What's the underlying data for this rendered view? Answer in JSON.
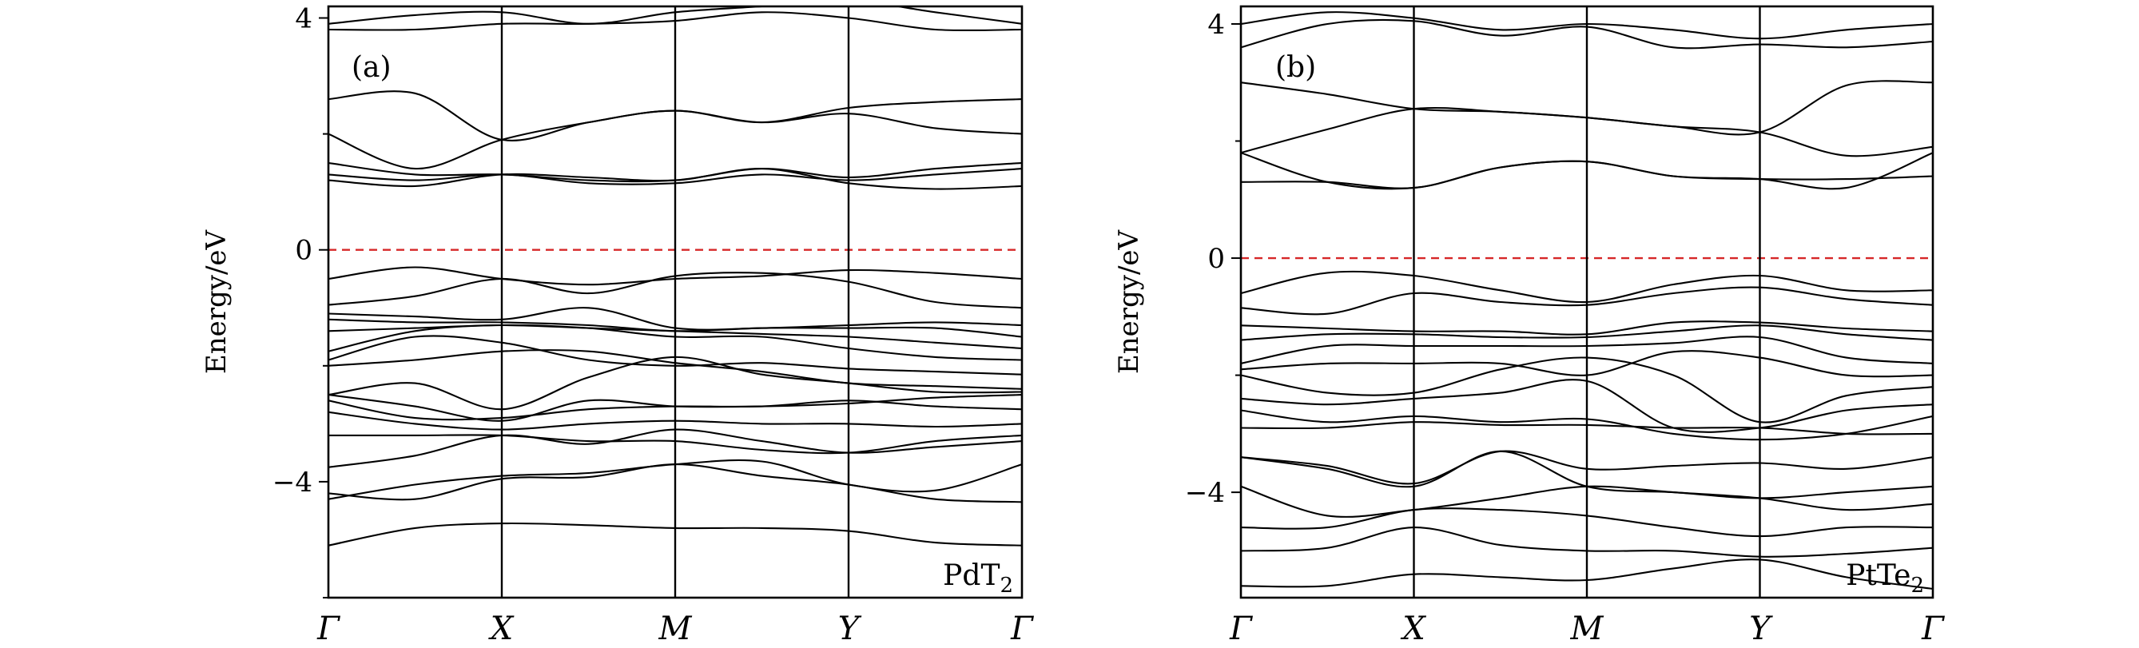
{
  "chart_data": [
    {
      "type": "line",
      "panel_label": "(a)",
      "material": {
        "base": "PdT",
        "sub": "2"
      },
      "ylabel": "Energy/eV",
      "ylim": [
        -6.0,
        4.2
      ],
      "yticks": [
        {
          "value": 4,
          "label": "4"
        },
        {
          "value": 0,
          "label": "0"
        },
        {
          "value": -4,
          "label": "−4"
        }
      ],
      "kpoints": [
        "Γ",
        "X",
        "M",
        "Y",
        "Γ"
      ],
      "fermi_level": 0,
      "bands": [
        [
          -5.1,
          -4.8,
          -4.72,
          -4.75,
          -4.8,
          -4.8,
          -4.85,
          -5.05,
          -5.1
        ],
        [
          -4.3,
          -4.05,
          -3.9,
          -3.85,
          -3.7,
          -3.65,
          -4.05,
          -4.15,
          -3.7
        ],
        [
          -4.2,
          -4.3,
          -3.95,
          -3.92,
          -3.7,
          -3.9,
          -4.05,
          -4.3,
          -4.35
        ],
        [
          -3.75,
          -3.55,
          -3.2,
          -3.35,
          -3.1,
          -3.3,
          -3.5,
          -3.4,
          -3.3
        ],
        [
          -3.2,
          -3.2,
          -3.2,
          -3.3,
          -3.3,
          -3.45,
          -3.5,
          -3.3,
          -3.2
        ],
        [
          -2.8,
          -3.0,
          -3.1,
          -3.0,
          -2.95,
          -3.0,
          -3.0,
          -3.05,
          -3.0
        ],
        [
          -2.6,
          -2.9,
          -2.9,
          -2.75,
          -2.7,
          -2.7,
          -2.6,
          -2.7,
          -2.75
        ],
        [
          -2.5,
          -2.7,
          -2.95,
          -2.6,
          -2.7,
          -2.7,
          -2.65,
          -2.55,
          -2.5
        ],
        [
          -2.5,
          -2.3,
          -2.75,
          -2.2,
          -1.85,
          -2.15,
          -2.3,
          -2.45,
          -2.45
        ],
        [
          -2.0,
          -1.9,
          -1.75,
          -1.75,
          -1.95,
          -2.1,
          -2.3,
          -2.35,
          -2.4
        ],
        [
          -1.9,
          -1.5,
          -1.6,
          -1.9,
          -2.0,
          -1.95,
          -2.05,
          -2.1,
          -2.15
        ],
        [
          -1.75,
          -1.4,
          -1.3,
          -1.35,
          -1.5,
          -1.5,
          -1.7,
          -1.85,
          -1.9
        ],
        [
          -1.4,
          -1.35,
          -1.3,
          -1.35,
          -1.4,
          -1.45,
          -1.5,
          -1.6,
          -1.7
        ],
        [
          -1.2,
          -1.25,
          -1.25,
          -1.3,
          -1.4,
          -1.35,
          -1.35,
          -1.35,
          -1.5
        ],
        [
          -1.1,
          -1.15,
          -1.2,
          -1.0,
          -1.35,
          -1.35,
          -1.3,
          -1.25,
          -1.3
        ],
        [
          -0.95,
          -0.8,
          -0.5,
          -0.75,
          -0.45,
          -0.4,
          -0.55,
          -0.9,
          -1.0
        ],
        [
          -0.5,
          -0.3,
          -0.5,
          -0.6,
          -0.5,
          -0.45,
          -0.35,
          -0.4,
          -0.5
        ],
        [
          1.2,
          1.1,
          1.3,
          1.25,
          1.2,
          1.4,
          1.15,
          1.05,
          1.1
        ],
        [
          1.3,
          1.2,
          1.3,
          1.15,
          1.15,
          1.3,
          1.2,
          1.3,
          1.4
        ],
        [
          1.5,
          1.3,
          1.3,
          1.2,
          1.2,
          1.4,
          1.25,
          1.4,
          1.5
        ],
        [
          2.0,
          1.4,
          1.9,
          2.2,
          2.4,
          2.2,
          2.35,
          2.1,
          2.0
        ],
        [
          2.6,
          2.7,
          1.9,
          2.2,
          2.4,
          2.2,
          2.45,
          2.55,
          2.6
        ],
        [
          3.8,
          3.8,
          3.9,
          3.9,
          3.95,
          4.1,
          4.0,
          3.8,
          3.8
        ],
        [
          3.9,
          4.05,
          4.1,
          3.9,
          4.1,
          4.2,
          4.3,
          4.1,
          3.9
        ]
      ]
    },
    {
      "type": "line",
      "panel_label": "(b)",
      "material": {
        "base": "PtTe",
        "sub": "2"
      },
      "ylabel": "Energy/eV",
      "ylim": [
        -5.8,
        4.3
      ],
      "yticks": [
        {
          "value": 4,
          "label": "4"
        },
        {
          "value": 0,
          "label": "0"
        },
        {
          "value": -4,
          "label": "−4"
        }
      ],
      "kpoints": [
        "Γ",
        "X",
        "M",
        "Y",
        "Γ"
      ],
      "fermi_level": 0,
      "bands": [
        [
          -5.6,
          -5.6,
          -5.4,
          -5.45,
          -5.5,
          -5.3,
          -5.15,
          -5.45,
          -5.65
        ],
        [
          -5.0,
          -4.95,
          -4.6,
          -4.9,
          -5.0,
          -5.0,
          -5.1,
          -5.05,
          -4.95
        ],
        [
          -4.6,
          -4.6,
          -4.3,
          -4.3,
          -4.4,
          -4.6,
          -4.75,
          -4.6,
          -4.6
        ],
        [
          -3.9,
          -4.4,
          -4.3,
          -4.1,
          -3.9,
          -4.0,
          -4.1,
          -4.3,
          -4.2
        ],
        [
          -3.4,
          -3.6,
          -3.9,
          -3.3,
          -3.9,
          -4.0,
          -4.1,
          -4.0,
          -3.9
        ],
        [
          -3.4,
          -3.55,
          -3.85,
          -3.3,
          -3.6,
          -3.55,
          -3.5,
          -3.6,
          -3.4
        ],
        [
          -2.9,
          -2.9,
          -2.8,
          -2.85,
          -2.85,
          -2.9,
          -2.9,
          -3.0,
          -3.0
        ],
        [
          -2.6,
          -2.8,
          -2.7,
          -2.8,
          -2.75,
          -3.0,
          -3.1,
          -3.0,
          -2.7
        ],
        [
          -2.4,
          -2.5,
          -2.4,
          -2.3,
          -2.1,
          -2.9,
          -2.9,
          -2.6,
          -2.5
        ],
        [
          -2.0,
          -2.3,
          -2.3,
          -1.9,
          -1.7,
          -2.0,
          -2.8,
          -2.35,
          -2.2
        ],
        [
          -1.9,
          -1.8,
          -1.8,
          -1.8,
          -2.0,
          -1.6,
          -1.7,
          -2.0,
          -2.0
        ],
        [
          -1.8,
          -1.5,
          -1.5,
          -1.5,
          -1.5,
          -1.45,
          -1.35,
          -1.7,
          -1.8
        ],
        [
          -1.4,
          -1.3,
          -1.3,
          -1.35,
          -1.35,
          -1.25,
          -1.15,
          -1.3,
          -1.4
        ],
        [
          -1.15,
          -1.2,
          -1.25,
          -1.25,
          -1.3,
          -1.1,
          -1.1,
          -1.2,
          -1.25
        ],
        [
          -0.85,
          -0.95,
          -0.6,
          -0.75,
          -0.8,
          -0.6,
          -0.5,
          -0.7,
          -0.8
        ],
        [
          -0.6,
          -0.25,
          -0.3,
          -0.55,
          -0.75,
          -0.45,
          -0.3,
          -0.55,
          -0.55
        ],
        [
          1.3,
          1.3,
          1.2,
          1.55,
          1.65,
          1.4,
          1.35,
          1.35,
          1.4
        ],
        [
          1.8,
          1.3,
          1.2,
          1.55,
          1.65,
          1.4,
          1.35,
          1.2,
          1.8
        ],
        [
          1.8,
          2.2,
          2.55,
          2.5,
          2.4,
          2.25,
          2.15,
          1.75,
          1.9
        ],
        [
          3.0,
          2.8,
          2.55,
          2.5,
          2.4,
          2.25,
          2.15,
          2.95,
          3.0
        ],
        [
          3.6,
          4.0,
          4.05,
          3.8,
          3.95,
          3.6,
          3.65,
          3.6,
          3.7
        ],
        [
          4.0,
          4.2,
          4.1,
          3.9,
          4.0,
          3.9,
          3.75,
          3.9,
          4.0
        ]
      ]
    }
  ]
}
